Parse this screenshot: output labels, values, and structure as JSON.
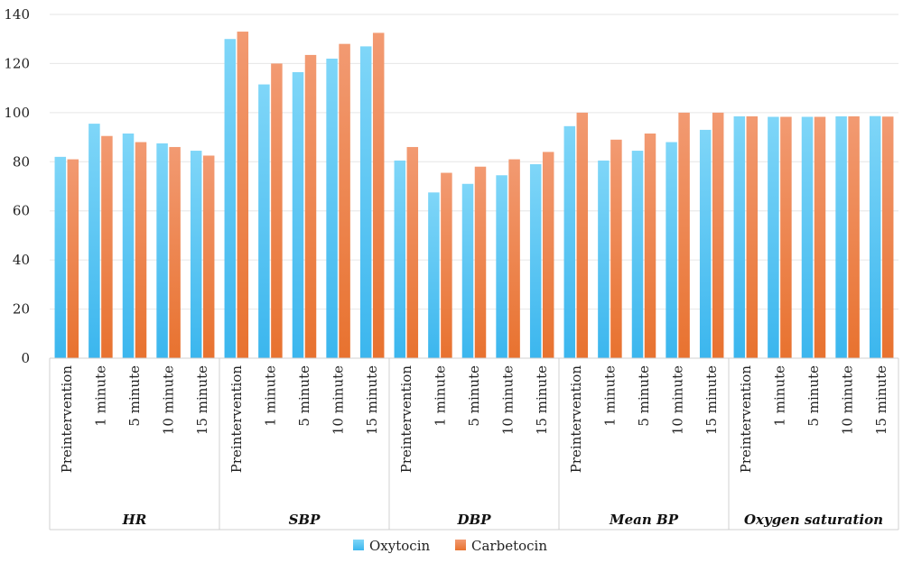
{
  "chart_data": {
    "type": "bar",
    "ylim": [
      0,
      140
    ],
    "yticks": [
      0,
      20,
      40,
      60,
      80,
      100,
      120,
      140
    ],
    "grid": true,
    "legend_position": "bottom-center",
    "groups": [
      {
        "label": "HR",
        "categories": [
          "Preintervention",
          "1 minute",
          "5 minute",
          "10 minute",
          "15 minute"
        ]
      },
      {
        "label": "SBP",
        "categories": [
          "Preintervention",
          "1 minute",
          "5 minute",
          "10 minute",
          "15 minute"
        ]
      },
      {
        "label": "DBP",
        "categories": [
          "Preintervention",
          "1 minute",
          "5 minute",
          "10 minute",
          "15 minute"
        ]
      },
      {
        "label": "Mean BP",
        "categories": [
          "Preintervention",
          "1 minute",
          "5 minute",
          "10 minute",
          "15 minute"
        ]
      },
      {
        "label": "Oxygen saturation",
        "categories": [
          "Preintervention",
          "1 minute",
          "5 minute",
          "10 minute",
          "15 minute"
        ]
      }
    ],
    "series": [
      {
        "name": "Oxytocin",
        "color": "#5BC8F5",
        "values": [
          82,
          95.5,
          91.5,
          87.5,
          84.5,
          130,
          111.5,
          116.5,
          122,
          127,
          80.5,
          67.5,
          71,
          74.5,
          79,
          94.5,
          80.5,
          84.5,
          88,
          93,
          98.5,
          98.3,
          98.3,
          98.5,
          98.6
        ]
      },
      {
        "name": "Carbetocin",
        "color": "#EE8550",
        "values": [
          81,
          90.5,
          88,
          86,
          82.5,
          133,
          120,
          123.5,
          128,
          132.5,
          86,
          75.5,
          78,
          81,
          84,
          100,
          89,
          91.5,
          100,
          100,
          98.5,
          98.3,
          98.3,
          98.5,
          98.4
        ]
      }
    ]
  }
}
